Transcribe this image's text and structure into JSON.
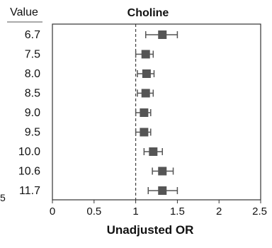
{
  "chart_data": {
    "type": "scatter",
    "subtype": "forest-plot",
    "title": "Choline",
    "xlabel": "Unadjusted OR",
    "row_header": "Value",
    "categories": [
      "6.7",
      "7.5",
      "8.0",
      "8.5",
      "9.0",
      "9.5",
      "10.0",
      "10.6",
      "11.7"
    ],
    "series": [
      {
        "estimate": [
          1.32,
          1.12,
          1.13,
          1.12,
          1.1,
          1.1,
          1.21,
          1.32,
          1.32
        ],
        "ci_low": [
          1.12,
          1.0,
          1.02,
          1.02,
          1.0,
          1.0,
          1.1,
          1.2,
          1.15
        ],
        "ci_high": [
          1.5,
          1.21,
          1.22,
          1.21,
          1.18,
          1.18,
          1.32,
          1.45,
          1.5
        ]
      }
    ],
    "xlim": [
      0,
      2.5
    ],
    "xticks": [
      "0",
      "0.5",
      "1",
      "1.5",
      "2",
      "2.5"
    ],
    "reference_line": 1,
    "left_edge_tick_fragment": "5",
    "grid": false,
    "colors": {
      "marker": "#555555",
      "axis": "#333333",
      "text": "#111111"
    }
  }
}
